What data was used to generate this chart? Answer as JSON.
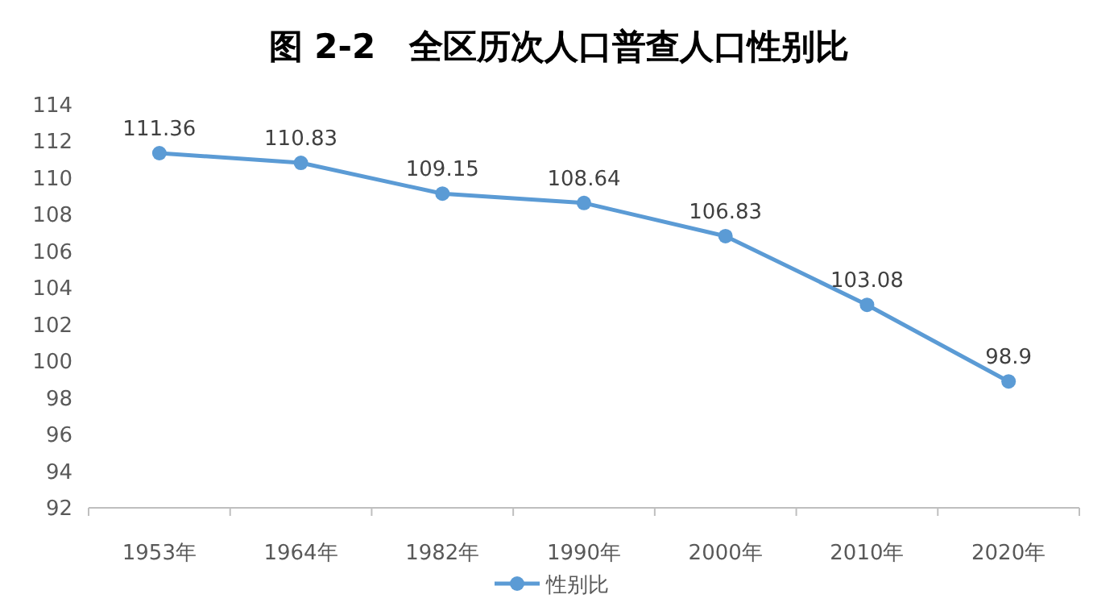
{
  "chart_data": {
    "type": "line",
    "title": "图 2-2　全区历次人口普查人口性别比",
    "categories": [
      "1953年",
      "1964年",
      "1982年",
      "1990年",
      "2000年",
      "2010年",
      "2020年"
    ],
    "series": [
      {
        "name": "性别比",
        "color": "#5b9bd5",
        "values": [
          111.36,
          110.83,
          109.15,
          108.64,
          106.83,
          103.08,
          98.9
        ]
      }
    ],
    "ylim": [
      92,
      114
    ],
    "yticks": [
      92,
      94,
      96,
      98,
      100,
      102,
      104,
      106,
      108,
      110,
      112,
      114
    ],
    "data_labels": true,
    "marker": "circle",
    "legend": "bottom",
    "grid": false
  }
}
